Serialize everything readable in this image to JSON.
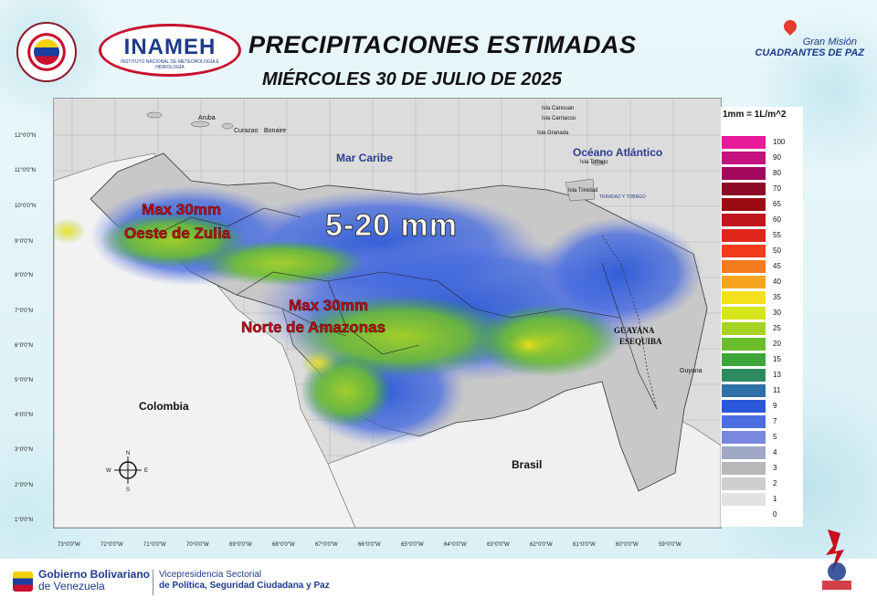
{
  "header": {
    "title": "PRECIPITACIONES ESTIMADAS",
    "subtitle": "MIÉRCOLES 30 DE JULIO DE 2025",
    "inameh_logo": "INAMEH",
    "inameh_logo_sub": "INSTITUTO NACIONAL DE METEOROLOGÍA E HIDROLOGÍA",
    "gran_mision_line1": "Gran Misión",
    "gran_mision_line2": "CUADRANTES DE PAZ"
  },
  "map": {
    "sea_label": "Mar Caribe",
    "ocean_label": "Océano Atlántico",
    "country_colombia": "Colombia",
    "country_brasil": "Brasil",
    "guayana_line1": "GUAYANA",
    "guayana_line2": "ESEQUIBA",
    "guyana": "Guyana",
    "islands": {
      "aruba": "Aruba",
      "curazao": "Curazao",
      "bonaire": "Bonaire",
      "trinidad_tobago": "TRINIDAD Y TOBAGO",
      "la_trinidad": "Isla Trinidad",
      "tobago": "Isla Tobago",
      "granada": "Isla Granada",
      "carriacou": "Isla Carriacou",
      "canouan": "Isla Canouan"
    },
    "annotation_main": "5-20 mm",
    "annotation_zulia_1": "Max 30mm",
    "annotation_zulia_2": "Oeste de Zulia",
    "annotation_amazonas_1": "Max 30mm",
    "annotation_amazonas_2": "Norte de Amazonas",
    "lat_ticks": [
      "12°0'0\"N",
      "11°0'0\"N",
      "10°0'0\"N",
      "9°0'0\"N",
      "8°0'0\"N",
      "7°0'0\"N",
      "6°0'0\"N",
      "5°0'0\"N",
      "4°0'0\"N",
      "3°0'0\"N",
      "2°0'0\"N",
      "1°0'0\"N"
    ],
    "lon_ticks": [
      "73°0'0\"W",
      "72°0'0\"W",
      "71°0'0\"W",
      "70°0'0\"W",
      "69°0'0\"W",
      "68°0'0\"W",
      "67°0'0\"W",
      "66°0'0\"W",
      "65°0'0\"W",
      "64°0'0\"W",
      "63°0'0\"W",
      "62°0'0\"W",
      "61°0'0\"W",
      "60°0'0\"W",
      "59°0'0\"W"
    ],
    "compass": {
      "n": "N",
      "s": "S",
      "e": "E",
      "w": "W"
    }
  },
  "legend": {
    "title": "1mm = 1L/m^2",
    "levels": [
      {
        "value": "100",
        "color": "#e8199b"
      },
      {
        "value": "90",
        "color": "#c4127e"
      },
      {
        "value": "80",
        "color": "#a0075d"
      },
      {
        "value": "70",
        "color": "#8c0a26"
      },
      {
        "value": "65",
        "color": "#9c0a14"
      },
      {
        "value": "60",
        "color": "#c0161c"
      },
      {
        "value": "55",
        "color": "#e0261a"
      },
      {
        "value": "50",
        "color": "#f33c1a"
      },
      {
        "value": "45",
        "color": "#f67a1e"
      },
      {
        "value": "40",
        "color": "#f7a51f"
      },
      {
        "value": "35",
        "color": "#f3e01b"
      },
      {
        "value": "30",
        "color": "#d5e61a"
      },
      {
        "value": "25",
        "color": "#a6d321"
      },
      {
        "value": "20",
        "color": "#6cbf2a"
      },
      {
        "value": "15",
        "color": "#3da53a"
      },
      {
        "value": "13",
        "color": "#2e8b60"
      },
      {
        "value": "11",
        "color": "#2f6fa8"
      },
      {
        "value": "9",
        "color": "#2a58d8"
      },
      {
        "value": "7",
        "color": "#4b6fe0"
      },
      {
        "value": "5",
        "color": "#7a88e0"
      },
      {
        "value": "4",
        "color": "#a0a8c8"
      },
      {
        "value": "3",
        "color": "#b8b8b8"
      },
      {
        "value": "2",
        "color": "#cfcfcf"
      },
      {
        "value": "1",
        "color": "#e2e2e2"
      },
      {
        "value": "0",
        "color": "#ffffff"
      }
    ]
  },
  "footer": {
    "gobierno_line1": "Gobierno Bolivariano",
    "gobierno_line2": "de Venezuela",
    "vp_line1": "Vicepresidencia Sectorial",
    "vp_line2": "de Política, Seguridad Ciudadana y Paz"
  }
}
